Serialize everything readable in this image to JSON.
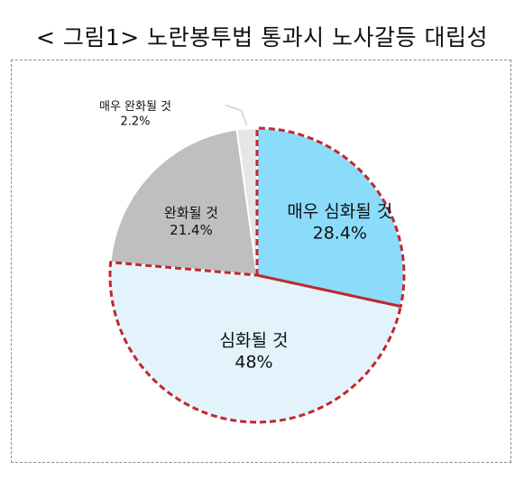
{
  "title": "< 그림1> 노란봉투법 통과시 노사갈등 대립성",
  "chart_data": {
    "type": "pie",
    "title": "< 그림1> 노란봉투법 통과시 노사갈등 대립성",
    "slices": [
      {
        "label": "매우 심화될 것",
        "value": 28.4,
        "display": "28.4%",
        "color": "#8BDCFB",
        "highlight": true
      },
      {
        "label": "심화될 것",
        "value": 48.0,
        "display": "48%",
        "color": "#E2F3FC",
        "highlight": true
      },
      {
        "label": "완화될 것",
        "value": 21.4,
        "display": "21.4%",
        "color": "#BFBFBF",
        "highlight": false
      },
      {
        "label": "매우 완화될 것",
        "value": 2.2,
        "display": "2.2%",
        "color": "#E6E6E6",
        "highlight": false
      }
    ],
    "highlight_outline_color": "#C0282D"
  }
}
